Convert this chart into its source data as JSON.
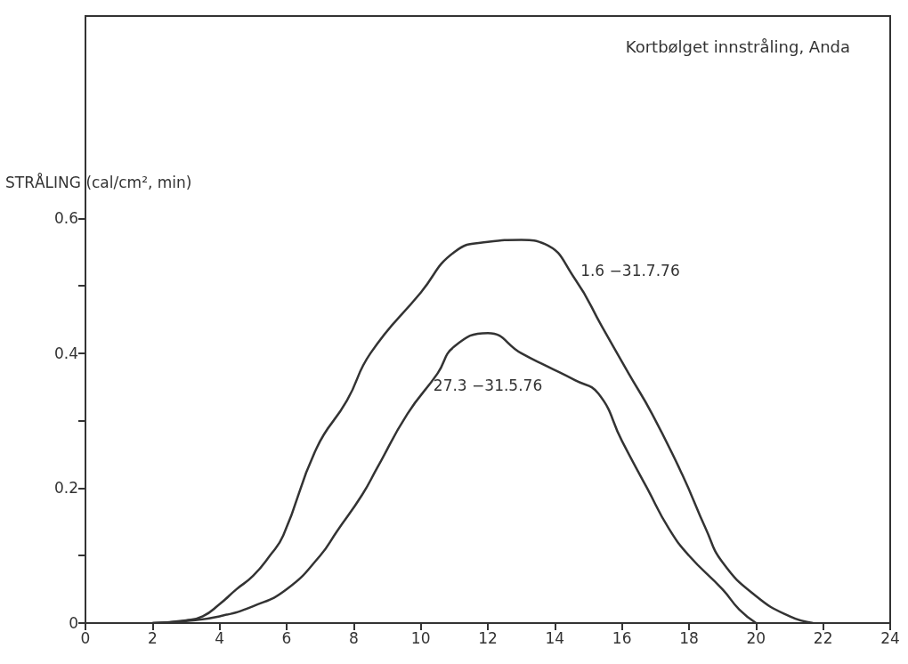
{
  "chart_data": {
    "type": "line",
    "title": "Kortbølget innstråling, Anda",
    "ylabel": "STRÅLING (cal/cm², min)",
    "xlim": [
      0,
      24
    ],
    "xticks": [
      0,
      2,
      4,
      6,
      8,
      10,
      12,
      14,
      16,
      18,
      20,
      22,
      24
    ],
    "ylim": [
      0,
      0.9
    ],
    "yticks": [
      0,
      {
        "value": 0.1,
        "label": null
      },
      0.2,
      {
        "value": 0.3,
        "label": null
      },
      0.4,
      {
        "value": 0.5,
        "label": null
      },
      0.6
    ],
    "grid": false,
    "legend": false,
    "marker": "none",
    "line_style": "solid",
    "series": [
      {
        "name": "1.6 −31.7.76",
        "color": "#333333",
        "x": [
          2,
          3,
          3.5,
          4,
          4.5,
          5,
          5.5,
          5.9,
          6.9,
          7.8,
          8.5,
          10,
          11,
          12,
          13,
          13.7,
          14.6,
          15.4,
          16.2,
          16.9,
          17.8,
          18.5,
          19,
          20,
          21,
          21.7
        ],
        "values": [
          0,
          0.004,
          0.01,
          0.028,
          0.05,
          0.07,
          0.1,
          0.13,
          0.26,
          0.33,
          0.4,
          0.49,
          0.55,
          0.565,
          0.568,
          0.562,
          0.51,
          0.44,
          0.37,
          0.31,
          0.22,
          0.14,
          0.09,
          0.04,
          0.01,
          0
        ]
      },
      {
        "name": "27.3 −31.5.76",
        "color": "#333333",
        "x": [
          2,
          3,
          4,
          5,
          6,
          7,
          7.5,
          8.25,
          8.7,
          9.6,
          10.5,
          11,
          12,
          13,
          13.8,
          14.6,
          15.3,
          16,
          16.75,
          17.4,
          18,
          19,
          19.5,
          20
        ],
        "values": [
          0,
          0.003,
          0.01,
          0.025,
          0.05,
          0.1,
          0.136,
          0.19,
          0.23,
          0.31,
          0.37,
          0.41,
          0.43,
          0.4,
          0.38,
          0.36,
          0.34,
          0.27,
          0.2,
          0.14,
          0.1,
          0.05,
          0.02,
          0
        ]
      }
    ]
  }
}
